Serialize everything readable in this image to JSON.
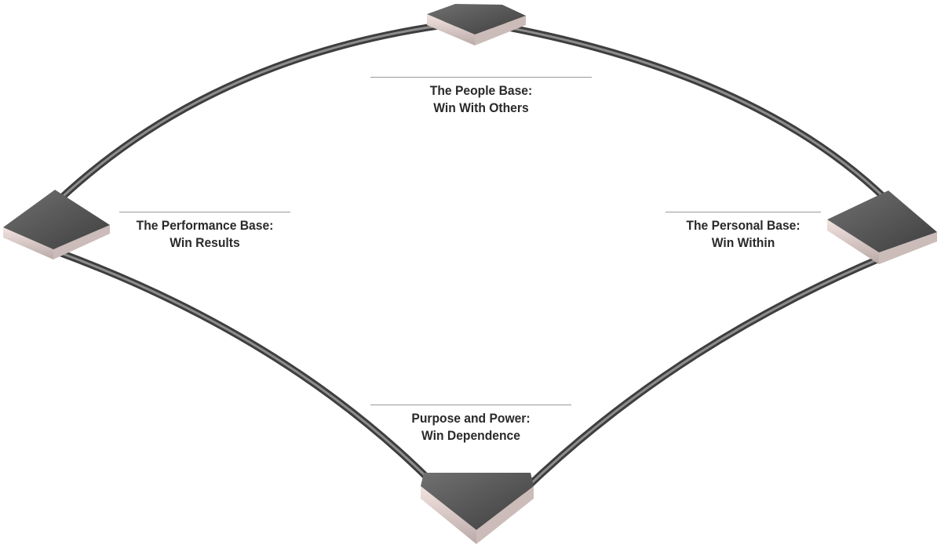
{
  "diagram": {
    "bases": {
      "top": {
        "line1": "The People Base:",
        "line2": "Win With Others"
      },
      "left": {
        "line1": "The Performance Base:",
        "line2": "Win Results"
      },
      "right": {
        "line1": "The Personal Base:",
        "line2": "Win Within"
      },
      "bottom": {
        "line1": "Purpose and Power:",
        "line2": "Win Dependence"
      }
    },
    "colors": {
      "track_dark": "#4a4a4a",
      "track_light": "#8a8a8a",
      "base_top_face": "#5f5f5f",
      "base_side": "#e9d6d3",
      "label_text": "#2a2a2a",
      "rule": "#9a9a9a"
    }
  }
}
